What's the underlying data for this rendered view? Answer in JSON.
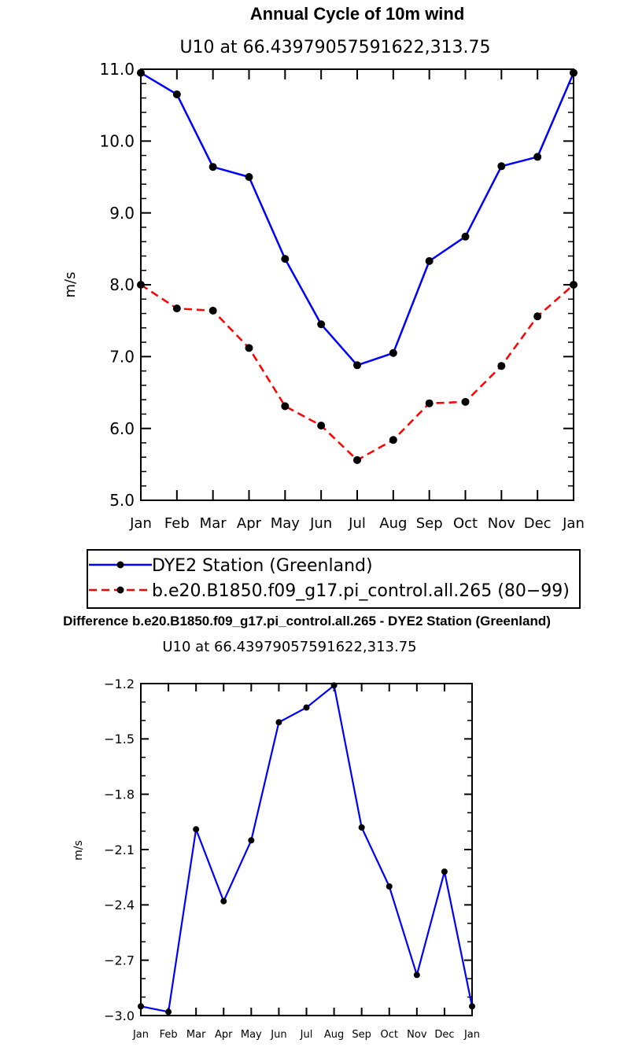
{
  "chart_data": [
    {
      "type": "line",
      "title": "Annual Cycle of 10m wind",
      "subtitle": "U10 at 66.43979057591622,313.75",
      "xlabel": "",
      "ylabel": "m/s",
      "ylim": [
        5.0,
        11.0
      ],
      "yticks": [
        "5.0",
        "6.0",
        "7.0",
        "8.0",
        "9.0",
        "10.0",
        "11.0"
      ],
      "categories": [
        "Jan",
        "Feb",
        "Mar",
        "Apr",
        "May",
        "Jun",
        "Jul",
        "Aug",
        "Sep",
        "Oct",
        "Nov",
        "Dec",
        "Jan"
      ],
      "series": [
        {
          "name": "DYE2 Station (Greenland)",
          "color": "#0000ff",
          "dash": "solid",
          "values": [
            10.95,
            10.65,
            9.64,
            9.5,
            8.36,
            7.45,
            6.88,
            7.05,
            8.33,
            8.67,
            9.65,
            9.78,
            10.95
          ]
        },
        {
          "name": "b.e20.B1850.f09_g17.pi_control.all.265 (80−99)",
          "color": "#ff0000",
          "dash": "dashed",
          "values": [
            8.0,
            7.67,
            7.64,
            7.12,
            6.31,
            6.04,
            5.56,
            5.84,
            6.35,
            6.37,
            6.87,
            7.56,
            8.0
          ]
        }
      ]
    },
    {
      "type": "line",
      "title": "Difference b.e20.B1850.f09_g17.pi_control.all.265 - DYE2 Station (Greenland)",
      "subtitle": "U10 at 66.43979057591622,313.75",
      "xlabel": "",
      "ylabel": "m/s",
      "ylim": [
        -3.0,
        -1.2
      ],
      "yticks": [
        "−3.0",
        "−2.7",
        "−2.4",
        "−2.1",
        "−1.8",
        "−1.5",
        "−1.2"
      ],
      "categories": [
        "Jan",
        "Feb",
        "Mar",
        "Apr",
        "May",
        "Jun",
        "Jul",
        "Aug",
        "Sep",
        "Oct",
        "Nov",
        "Dec",
        "Jan"
      ],
      "series": [
        {
          "name": "Difference",
          "color": "#0000ff",
          "dash": "solid",
          "values": [
            -2.95,
            -2.98,
            -1.99,
            -2.38,
            -2.05,
            -1.41,
            -1.33,
            -1.21,
            -1.98,
            -2.3,
            -2.78,
            -2.22,
            -2.95
          ]
        }
      ]
    }
  ]
}
